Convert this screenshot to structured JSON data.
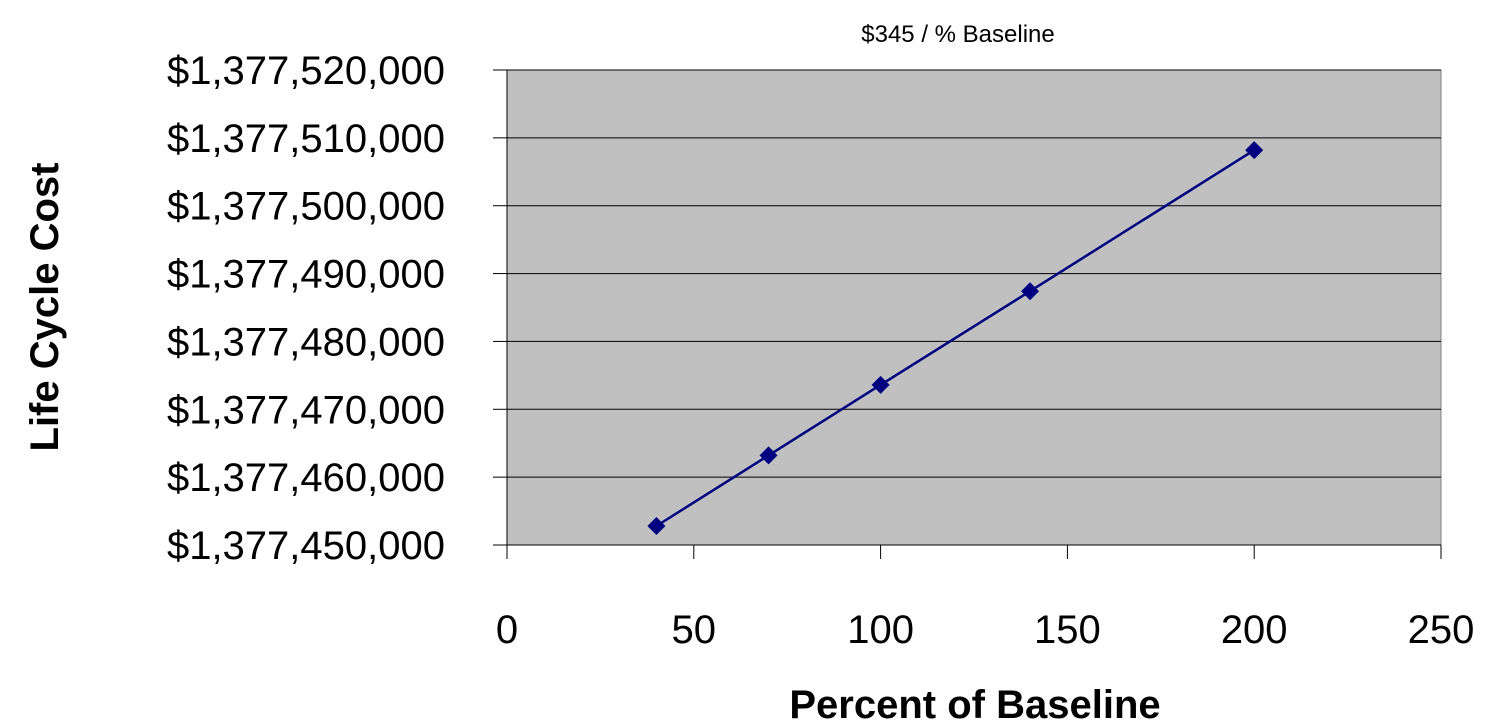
{
  "chart_data": {
    "type": "scatter",
    "annotation": "$345 / % Baseline",
    "xlabel": "Percent of Baseline",
    "ylabel": "Life Cycle Cost",
    "xlim": [
      0,
      250
    ],
    "ylim": [
      1377450000,
      1377520000
    ],
    "x_ticks": [
      0,
      50,
      100,
      150,
      200,
      250
    ],
    "y_ticks": [
      1377450000,
      1377460000,
      1377470000,
      1377480000,
      1377490000,
      1377500000,
      1377510000,
      1377520000
    ],
    "y_tick_labels": [
      "$1,377,450,000",
      "$1,377,460,000",
      "$1,377,470,000",
      "$1,377,480,000",
      "$1,377,490,000",
      "$1,377,500,000",
      "$1,377,510,000",
      "$1,377,520,000"
    ],
    "grid": "horizontal",
    "legend": "none",
    "series": [
      {
        "x": [
          40,
          70,
          100,
          140,
          200
        ],
        "y": [
          1377452800,
          1377463200,
          1377473600,
          1377487400,
          1377508200
        ],
        "marker": "diamond",
        "line": true
      }
    ],
    "colors": {
      "plot_background": "#c0c0c0",
      "series": "#000080",
      "gridline": "#000000"
    }
  }
}
